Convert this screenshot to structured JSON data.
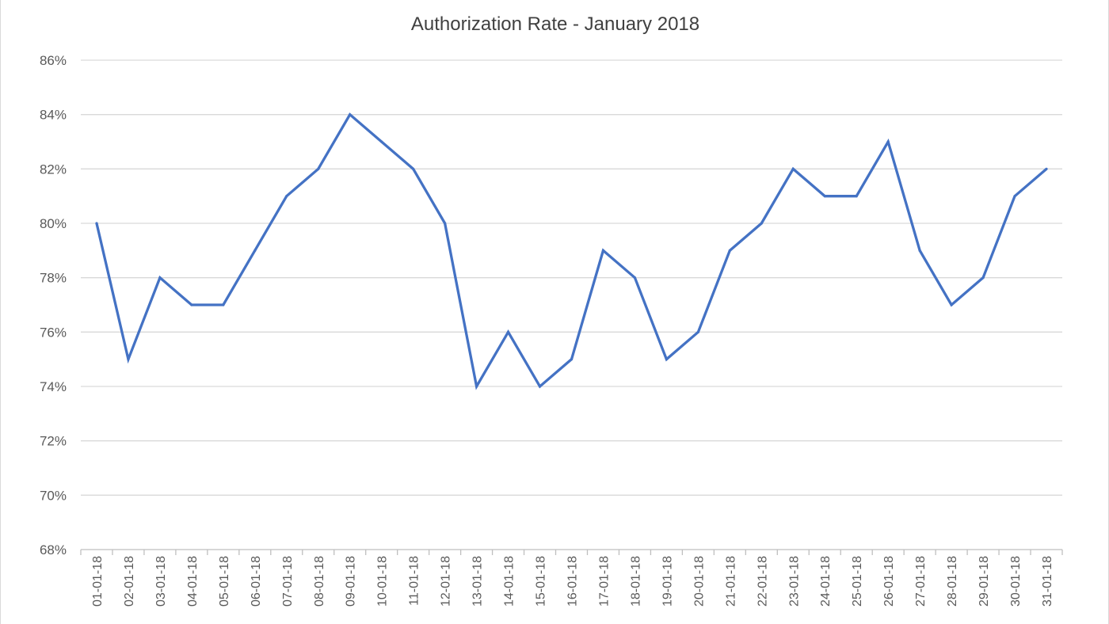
{
  "chart_data": {
    "type": "line",
    "title": "Authorization Rate - January 2018",
    "xlabel": "",
    "ylabel": "",
    "categories": [
      "01-01-18",
      "02-01-18",
      "03-01-18",
      "04-01-18",
      "05-01-18",
      "06-01-18",
      "07-01-18",
      "08-01-18",
      "09-01-18",
      "10-01-18",
      "11-01-18",
      "12-01-18",
      "13-01-18",
      "14-01-18",
      "15-01-18",
      "16-01-18",
      "17-01-18",
      "18-01-18",
      "19-01-18",
      "20-01-18",
      "21-01-18",
      "22-01-18",
      "23-01-18",
      "24-01-18",
      "25-01-18",
      "26-01-18",
      "27-01-18",
      "28-01-18",
      "29-01-18",
      "30-01-18",
      "31-01-18"
    ],
    "series": [
      {
        "values": [
          80,
          75,
          78,
          77,
          77,
          79,
          81,
          82,
          84,
          83,
          82,
          80,
          74,
          76,
          74,
          75,
          79,
          78,
          75,
          76,
          79,
          80,
          82,
          81,
          81,
          83,
          79,
          77,
          78,
          81,
          82
        ],
        "color": "#4472C4"
      }
    ],
    "y_ticks": [
      "68%",
      "70%",
      "72%",
      "74%",
      "76%",
      "78%",
      "80%",
      "82%",
      "84%",
      "86%"
    ],
    "ylim": [
      68,
      86
    ],
    "y_tick_step": 2,
    "grid": "horizontal",
    "legend": "none",
    "colors": {
      "grid": "#d9d9d9",
      "axis": "#bfbfbf",
      "text": "#595959",
      "title": "#404040"
    }
  }
}
